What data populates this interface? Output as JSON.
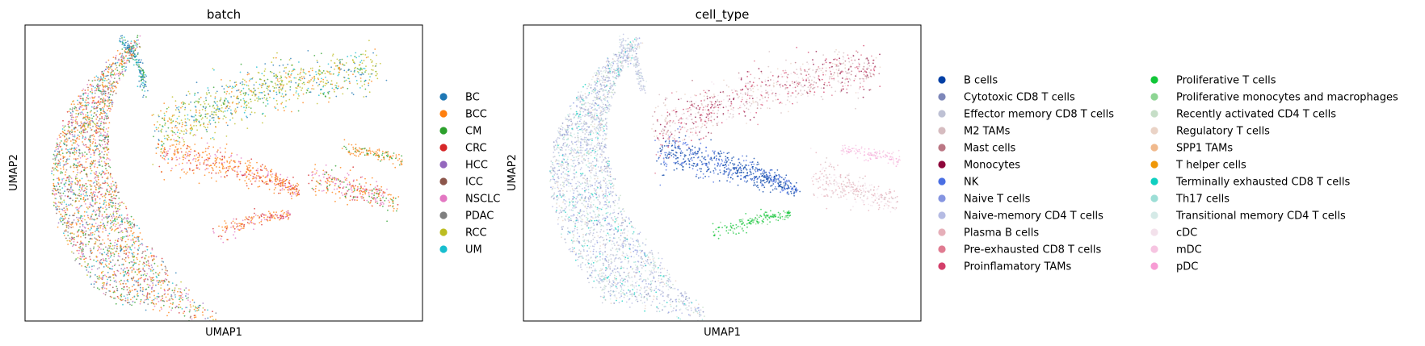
{
  "chart_data": [
    {
      "type": "scatter",
      "title": "batch",
      "xlabel": "UMAP1",
      "ylabel": "UMAP2",
      "grid": false,
      "ticks": false,
      "legend_placement": "right",
      "legend": [
        {
          "name": "BC",
          "color": "#1f77b4"
        },
        {
          "name": "BCC",
          "color": "#ff7f0e"
        },
        {
          "name": "CM",
          "color": "#2ca02c"
        },
        {
          "name": "CRC",
          "color": "#d62728"
        },
        {
          "name": "HCC",
          "color": "#9467bd"
        },
        {
          "name": "ICC",
          "color": "#8c564b"
        },
        {
          "name": "NSCLC",
          "color": "#e377c2"
        },
        {
          "name": "PDAC",
          "color": "#7f7f7f"
        },
        {
          "name": "RCC",
          "color": "#bcbd22"
        },
        {
          "name": "UM",
          "color": "#17becf"
        }
      ]
    },
    {
      "type": "scatter",
      "title": "cell_type",
      "xlabel": "UMAP1",
      "ylabel": "UMAP2",
      "grid": false,
      "ticks": false,
      "legend_placement": "right",
      "legend": [
        {
          "name": "B cells",
          "color": "#023fa5"
        },
        {
          "name": "Cytotoxic CD8 T cells",
          "color": "#7d87b9"
        },
        {
          "name": "Effector memory CD8 T cells",
          "color": "#bec1d4"
        },
        {
          "name": "M2 TAMs",
          "color": "#d6bcc0"
        },
        {
          "name": "Mast cells",
          "color": "#bb7784"
        },
        {
          "name": "Monocytes",
          "color": "#8e063b"
        },
        {
          "name": "NK",
          "color": "#4a6fe3"
        },
        {
          "name": "Naive T cells",
          "color": "#8595e1"
        },
        {
          "name": "Naive-memory CD4 T cells",
          "color": "#b5bbe3"
        },
        {
          "name": "Plasma B cells",
          "color": "#e6afb9"
        },
        {
          "name": "Pre-exhausted CD8 T cells",
          "color": "#e07b91"
        },
        {
          "name": "Proinflamatory TAMs",
          "color": "#d33f6a"
        },
        {
          "name": "Proliferative T cells",
          "color": "#11c638"
        },
        {
          "name": "Proliferative monocytes and macrophages",
          "color": "#8dd593"
        },
        {
          "name": "Recently activated CD4 T cells",
          "color": "#c6dec7"
        },
        {
          "name": "Regulatory T cells",
          "color": "#ead3c6"
        },
        {
          "name": "SPP1 TAMs",
          "color": "#f0b98d"
        },
        {
          "name": "T helper cells",
          "color": "#ef9708"
        },
        {
          "name": "Terminally exhausted CD8 T cells",
          "color": "#0fcfc0"
        },
        {
          "name": "Th17 cells",
          "color": "#9cded6"
        },
        {
          "name": "Transitional memory CD4 T cells",
          "color": "#d5eae7"
        },
        {
          "name": "cDC",
          "color": "#f3e1eb"
        },
        {
          "name": "mDC",
          "color": "#f6c4e1"
        },
        {
          "name": "pDC",
          "color": "#f79cd4"
        }
      ]
    }
  ]
}
